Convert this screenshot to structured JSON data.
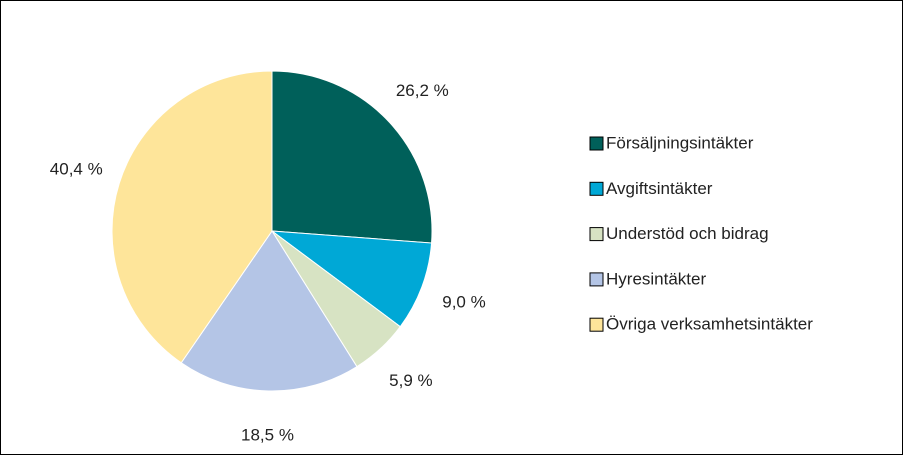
{
  "chart_data": {
    "type": "pie",
    "categories": [
      "Försäljningsintäkter",
      "Avgiftsintäkter",
      "Understöd och bidrag",
      "Hyresintäkter",
      "Övriga verksamhetsintäkter"
    ],
    "values": [
      26.2,
      9.0,
      5.9,
      18.5,
      40.4
    ],
    "value_labels": [
      "26,2 %",
      "9,0 %",
      "5,9 %",
      "18,5 %",
      "40,4 %"
    ],
    "colors": [
      "#00605a",
      "#00a8d6",
      "#d7e3c3",
      "#b4c5e6",
      "#fee59a"
    ],
    "legend": "right"
  }
}
